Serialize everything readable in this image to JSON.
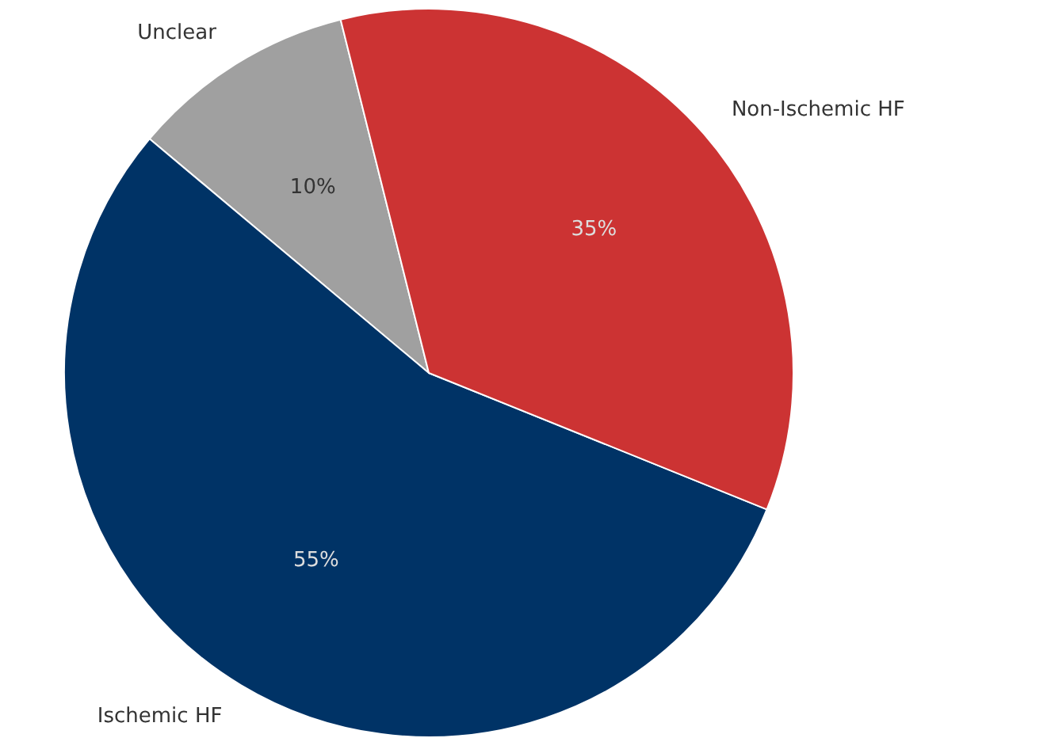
{
  "chart_data": {
    "type": "pie",
    "categories": [
      "Unclear",
      "Ischemic HF",
      "Non-Ischemic HF"
    ],
    "values": [
      10,
      55,
      35
    ],
    "colors": [
      "#a0a0a0",
      "#003366",
      "#cc3333"
    ],
    "value_labels": [
      "10%",
      "55%",
      "35%"
    ],
    "legend": false
  }
}
